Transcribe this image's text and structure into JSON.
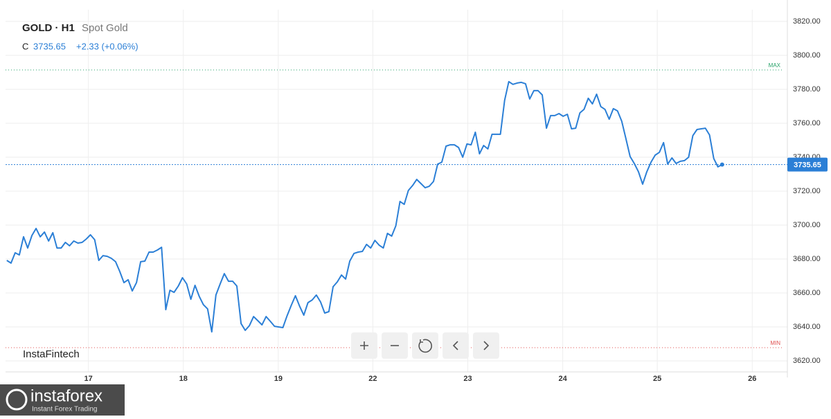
{
  "chart_data": {
    "type": "line",
    "header": {
      "symbol": "GOLD · H1",
      "name": "Spot Gold",
      "close_prefix": "C",
      "close": 3735.65,
      "change": "+2.33 (+0.06%)"
    },
    "watermark": "InstaFintech",
    "logo": {
      "name": "instaforex",
      "tagline": "Instant Forex Trading"
    },
    "series": [
      {
        "name": "Spot Gold",
        "color": "#2b7fd6",
        "values": [
          3679.2,
          3677.6,
          3683.7,
          3682.4,
          3693.1,
          3686.5,
          3693.9,
          3698.0,
          3693.1,
          3695.9,
          3690.6,
          3695.5,
          3686.5,
          3686.5,
          3689.8,
          3687.8,
          3690.6,
          3689.4,
          3689.8,
          3691.8,
          3694.3,
          3691.4,
          3679.2,
          3682.0,
          3681.6,
          3680.4,
          3678.4,
          3672.7,
          3666.1,
          3667.8,
          3661.2,
          3666.1,
          3678.4,
          3678.8,
          3684.1,
          3684.1,
          3685.3,
          3686.9,
          3650.2,
          3661.6,
          3660.4,
          3664.1,
          3669.0,
          3665.3,
          3656.3,
          3664.5,
          3658.0,
          3653.1,
          3650.6,
          3637.1,
          3658.8,
          3665.3,
          3671.4,
          3666.9,
          3666.9,
          3664.1,
          3642.0,
          3638.0,
          3640.8,
          3646.1,
          3643.7,
          3641.2,
          3646.1,
          3643.3,
          3640.4,
          3640.0,
          3639.6,
          3646.5,
          3652.7,
          3658.4,
          3652.2,
          3646.9,
          3654.3,
          3655.9,
          3658.8,
          3654.7,
          3648.2,
          3649.0,
          3663.7,
          3666.5,
          3670.6,
          3668.2,
          3678.8,
          3683.3,
          3684.1,
          3684.5,
          3688.6,
          3686.5,
          3691.0,
          3688.2,
          3686.5,
          3695.1,
          3693.5,
          3699.6,
          3713.9,
          3712.2,
          3720.4,
          3723.3,
          3726.9,
          3724.5,
          3722.0,
          3722.9,
          3725.7,
          3735.9,
          3737.1,
          3746.5,
          3747.3,
          3747.3,
          3745.7,
          3740.0,
          3747.8,
          3747.3,
          3754.7,
          3742.0,
          3746.9,
          3744.9,
          3753.5,
          3753.5,
          3753.5,
          3773.5,
          3784.5,
          3782.9,
          3783.7,
          3784.1,
          3783.3,
          3774.3,
          3779.2,
          3779.2,
          3776.7,
          3757.1,
          3764.5,
          3764.5,
          3765.7,
          3764.1,
          3765.3,
          3756.7,
          3757.1,
          3766.1,
          3768.2,
          3774.7,
          3771.4,
          3777.1,
          3769.8,
          3768.2,
          3762.4,
          3768.6,
          3767.3,
          3761.2,
          3751.0,
          3740.4,
          3736.3,
          3731.4,
          3724.1,
          3731.4,
          3737.1,
          3741.2,
          3742.9,
          3748.6,
          3735.9,
          3739.6,
          3736.3,
          3737.6,
          3738.0,
          3740.0,
          3752.7,
          3756.3,
          3756.7,
          3757.1,
          3753.1,
          3739.2,
          3734.3,
          3735.65
        ]
      }
    ],
    "xlim": [
      -0.3,
      186.6
    ],
    "xticks": [
      {
        "value": 19.5,
        "label": "17"
      },
      {
        "value": 42.2,
        "label": "18"
      },
      {
        "value": 64.9,
        "label": "19"
      },
      {
        "value": 87.5,
        "label": "22"
      },
      {
        "value": 110.2,
        "label": "23"
      },
      {
        "value": 132.9,
        "label": "24"
      },
      {
        "value": 155.5,
        "label": "25"
      },
      {
        "value": 178.2,
        "label": "26"
      }
    ],
    "ylim": [
      3613.5,
      3826.9
    ],
    "yticks": [
      {
        "value": 3620,
        "label": "3620.00"
      },
      {
        "value": 3640,
        "label": "3640.00"
      },
      {
        "value": 3660,
        "label": "3660.00"
      },
      {
        "value": 3680,
        "label": "3680.00"
      },
      {
        "value": 3700,
        "label": "3700.00"
      },
      {
        "value": 3720,
        "label": "3720.00"
      },
      {
        "value": 3740,
        "label": "3740.00"
      },
      {
        "value": 3760,
        "label": "3760.00"
      },
      {
        "value": 3780,
        "label": "3780.00"
      },
      {
        "value": 3800,
        "label": "3800.00"
      },
      {
        "value": 3820,
        "label": "3820.00"
      }
    ],
    "grid": true,
    "price_line": {
      "value": 3735.65,
      "color": "#2b7fd6"
    },
    "max_line": {
      "value": 3791.4,
      "label": "MAX",
      "color": "#26a269"
    },
    "min_line": {
      "value": 3627.8,
      "label": "MIN",
      "color": "#e05050"
    }
  }
}
